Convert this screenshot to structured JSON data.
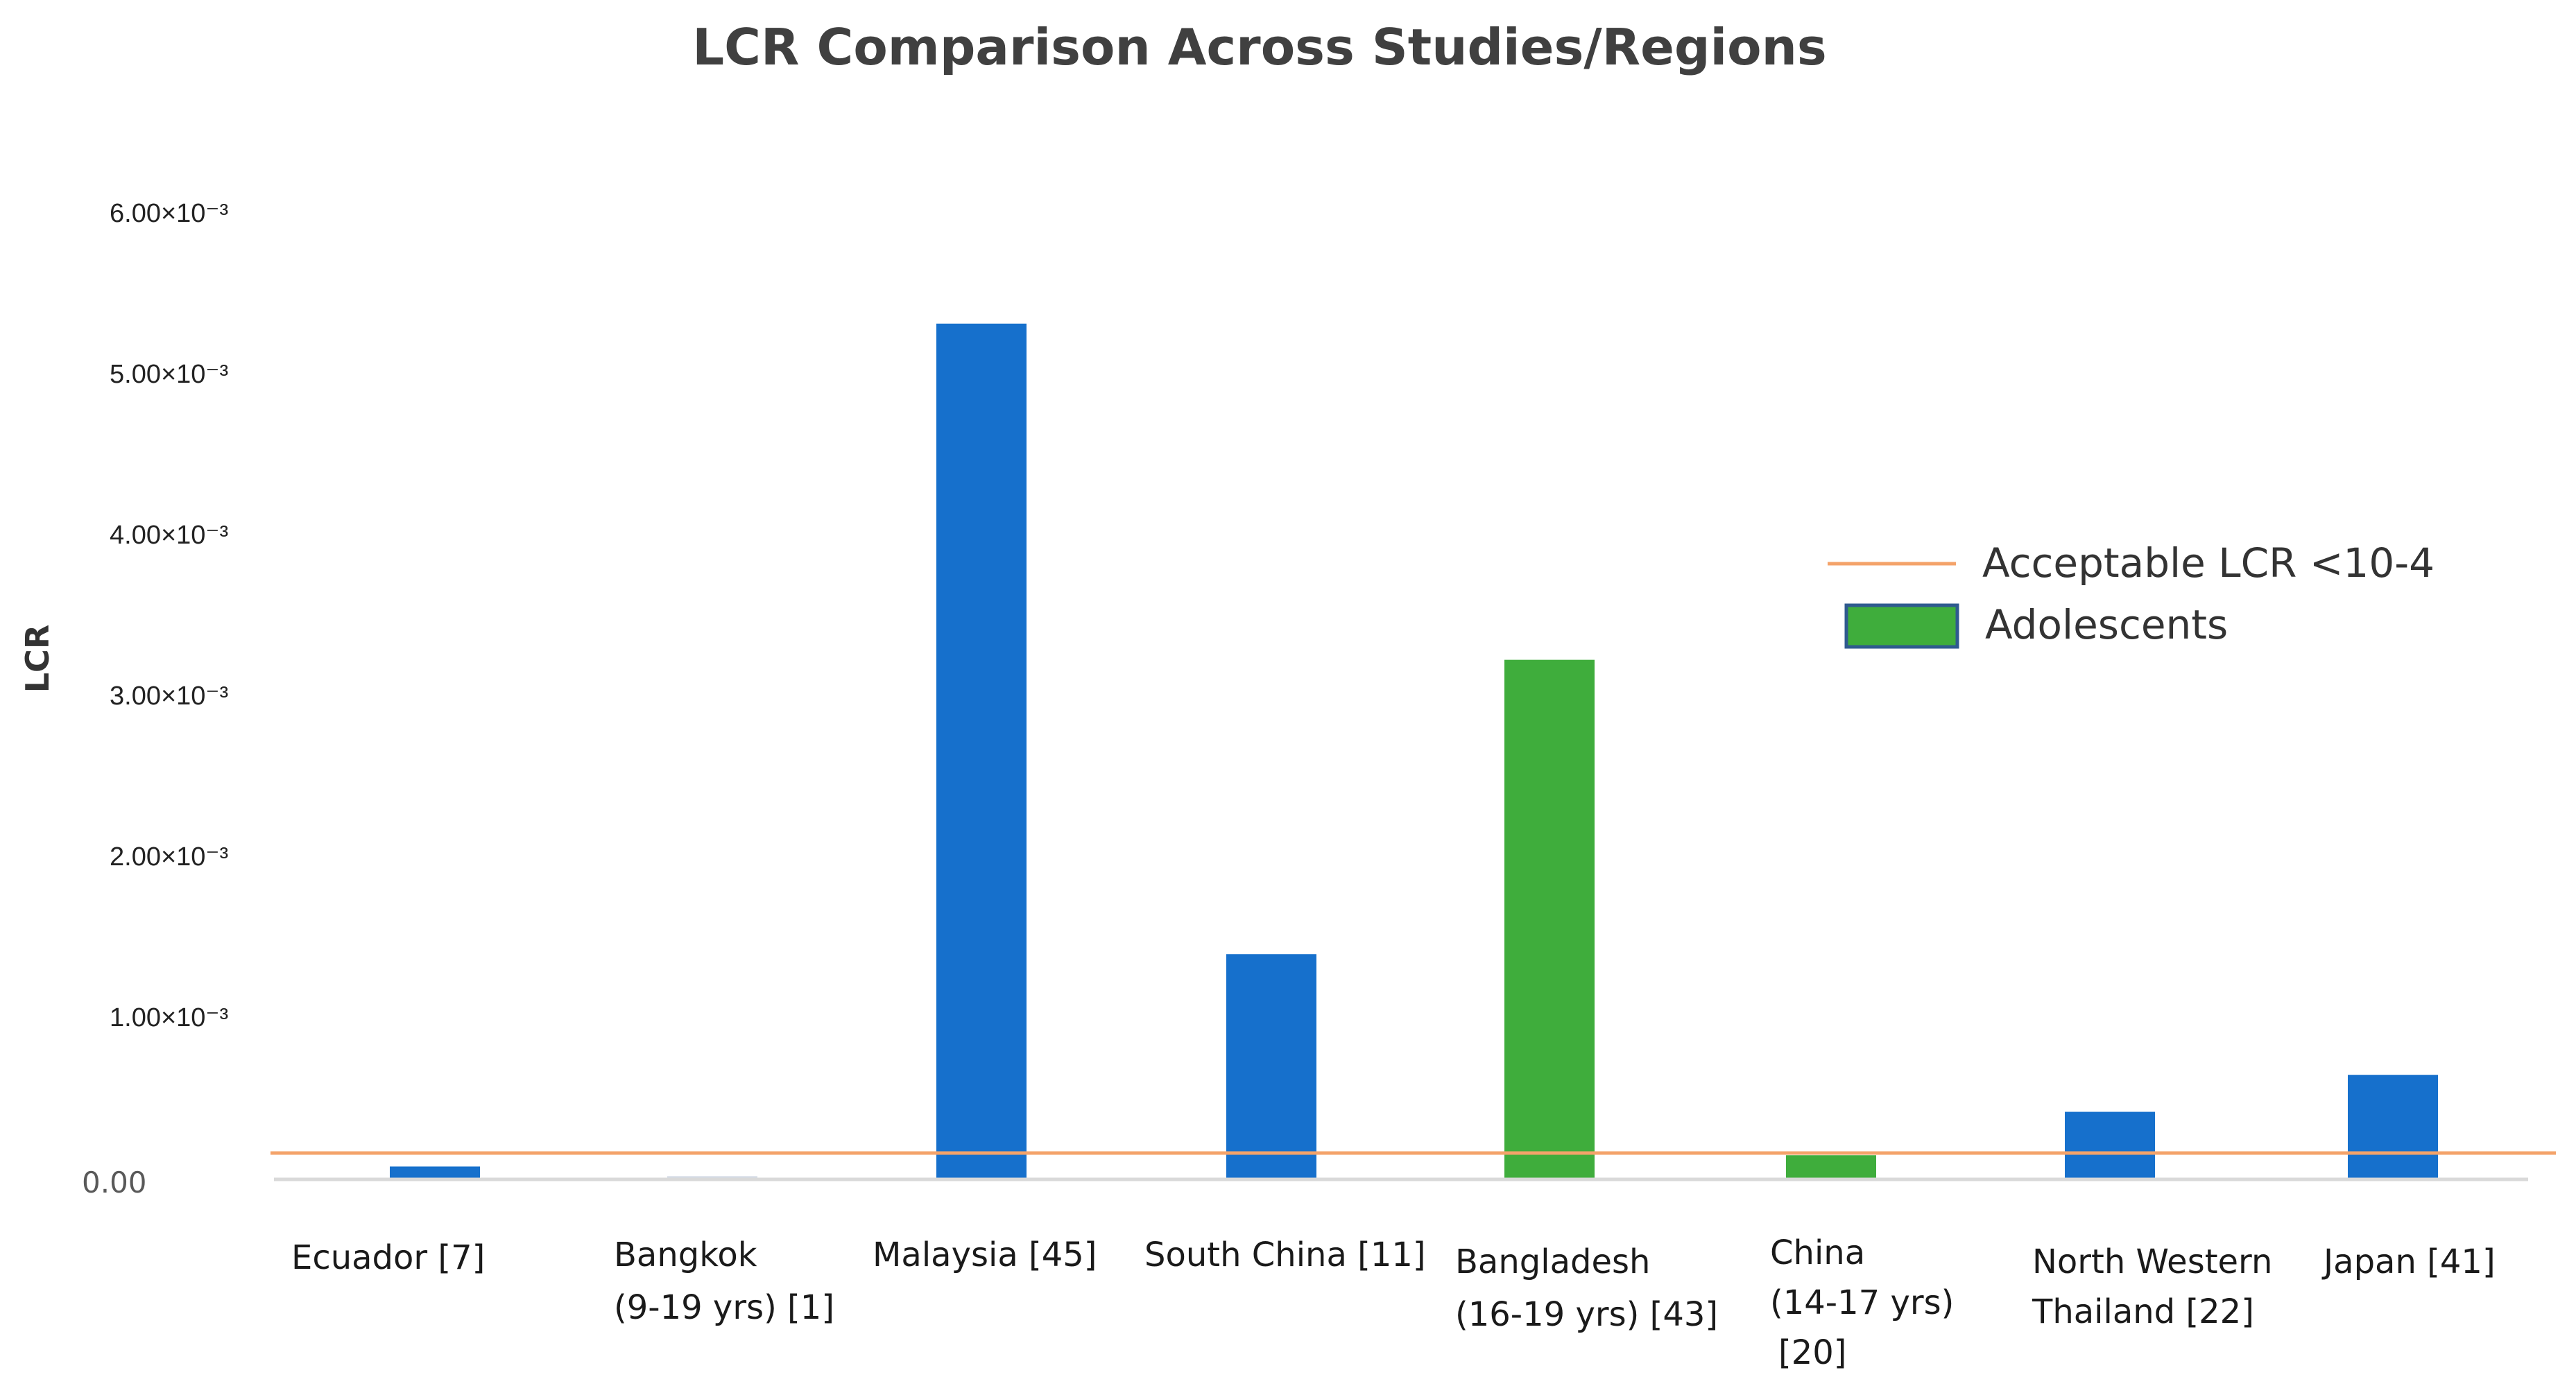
{
  "chart_data": {
    "type": "bar",
    "title": "LCR Comparison Across Studies/Regions",
    "xlabel": "",
    "ylabel": "LCR",
    "ylim": [
      0,
      0.006
    ],
    "ytick_labels": [
      "0.00",
      "1.00×10⁻³",
      "2.00×10⁻³",
      "3.00×10⁻³",
      "4.00×10⁻³",
      "5.00×10⁻³",
      "6.00×10⁻³"
    ],
    "categories": [
      "Ecuador [7]",
      "Bangkok (9-19 yrs) [1]",
      "Malaysia [45]",
      "South China [11]",
      "Bangladesh (16-19 yrs) [43]",
      "China (14-17 yrs) [20]",
      "North Western Thailand [22]",
      "Japan [41]"
    ],
    "category_label_lines": [
      [
        "Ecuador [7]"
      ],
      [
        "Bangkok",
        "(9-19 yrs) [1]"
      ],
      [
        "Malaysia [45]"
      ],
      [
        "South China [11]"
      ],
      [
        "Bangladesh",
        "(16-19 yrs) [43]"
      ],
      [
        "China",
        "(14-17 yrs)",
        "[20]"
      ],
      [
        "North Western",
        "Thailand [22]"
      ],
      [
        "Japan [41]"
      ]
    ],
    "series": [
      {
        "name": "LCR",
        "values": [
          8e-05,
          2e-05,
          0.00532,
          0.0014,
          0.00323,
          0.00015,
          0.00042,
          0.00065
        ],
        "groups": [
          "general",
          "general",
          "general",
          "general",
          "adolescents",
          "adolescents",
          "general",
          "general"
        ]
      }
    ],
    "reference_line": {
      "label": "Acceptable LCR <10-4",
      "value": 0.0001,
      "color": "#f4a36a"
    },
    "legend": {
      "placement": "right",
      "entries": [
        {
          "label": "Acceptable LCR <10-4",
          "kind": "line",
          "color": "#f4a36a"
        },
        {
          "label": "Adolescents",
          "kind": "box",
          "color": "#3fad3c",
          "border": "#2f5a8f"
        }
      ]
    },
    "colors": {
      "general": "#1670cc",
      "adolescents": "#3fad3c",
      "faint": "#d4dbe6",
      "axis": "#d9d9d9"
    }
  }
}
